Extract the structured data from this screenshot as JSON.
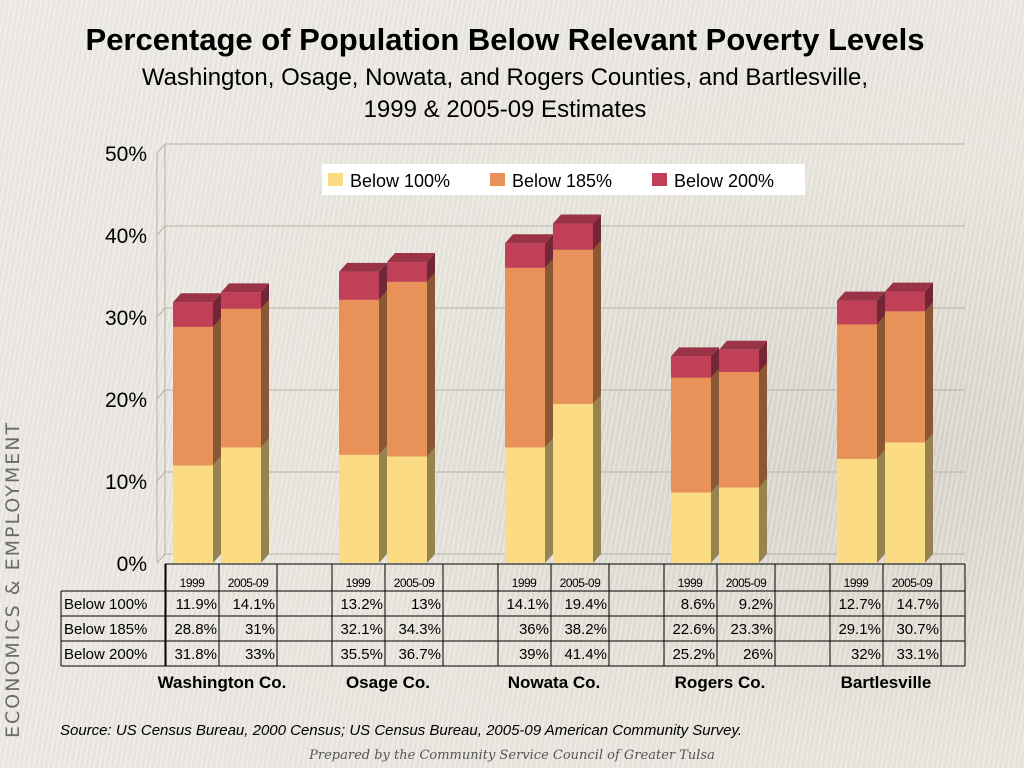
{
  "title": "Percentage of Population Below Relevant Poverty Levels",
  "subtitle_line1": "Washington, Osage, Nowata, and Rogers Counties, and Bartlesville,",
  "subtitle_line2": "1999 & 2005-09 Estimates",
  "side_label": "ECONOMICS & EMPLOYMENT",
  "source": "Source:  US Census Bureau, 2000 Census; US Census Bureau, 2005-09 American Community Survey.",
  "prepared_by": "Prepared by the Community Service Council of Greater Tulsa",
  "chart_data": {
    "type": "bar",
    "stacked": true,
    "y_ticks": [
      "0%",
      "10%",
      "20%",
      "30%",
      "40%",
      "50%"
    ],
    "ylim": [
      0,
      50
    ],
    "grid": true,
    "legend_position": "top-right",
    "groups": [
      "Washington Co.",
      "Osage Co.",
      "Nowata Co.",
      "Rogers Co.",
      "Bartlesville"
    ],
    "periods": [
      "1999",
      "2005-09"
    ],
    "series": [
      {
        "name": "Below 100%",
        "color": "#fcdb85",
        "values": [
          [
            11.9,
            14.1
          ],
          [
            13.2,
            13
          ],
          [
            14.1,
            19.4
          ],
          [
            8.6,
            9.2
          ],
          [
            12.7,
            14.7
          ]
        ],
        "labels": [
          [
            "11.9%",
            "14.1%"
          ],
          [
            "13.2%",
            "13%"
          ],
          [
            "14.1%",
            "19.4%"
          ],
          [
            "8.6%",
            "9.2%"
          ],
          [
            "12.7%",
            "14.7%"
          ]
        ]
      },
      {
        "name": "Below 185%",
        "color": "#e8925a",
        "values": [
          [
            28.8,
            31
          ],
          [
            32.1,
            34.3
          ],
          [
            36,
            38.2
          ],
          [
            22.6,
            23.3
          ],
          [
            29.1,
            30.7
          ]
        ],
        "labels": [
          [
            "28.8%",
            "31%"
          ],
          [
            "32.1%",
            "34.3%"
          ],
          [
            "36%",
            "38.2%"
          ],
          [
            "22.6%",
            "23.3%"
          ],
          [
            "29.1%",
            "30.7%"
          ]
        ]
      },
      {
        "name": "Below 200%",
        "color": "#c04058",
        "values": [
          [
            31.8,
            33
          ],
          [
            35.5,
            36.7
          ],
          [
            39,
            41.4
          ],
          [
            25.2,
            26
          ],
          [
            32,
            33.1
          ]
        ],
        "labels": [
          [
            "31.8%",
            "33%"
          ],
          [
            "35.5%",
            "36.7%"
          ],
          [
            "39%",
            "41.4%"
          ],
          [
            "25.2%",
            "26%"
          ],
          [
            "32%",
            "33.1%"
          ]
        ]
      }
    ]
  }
}
